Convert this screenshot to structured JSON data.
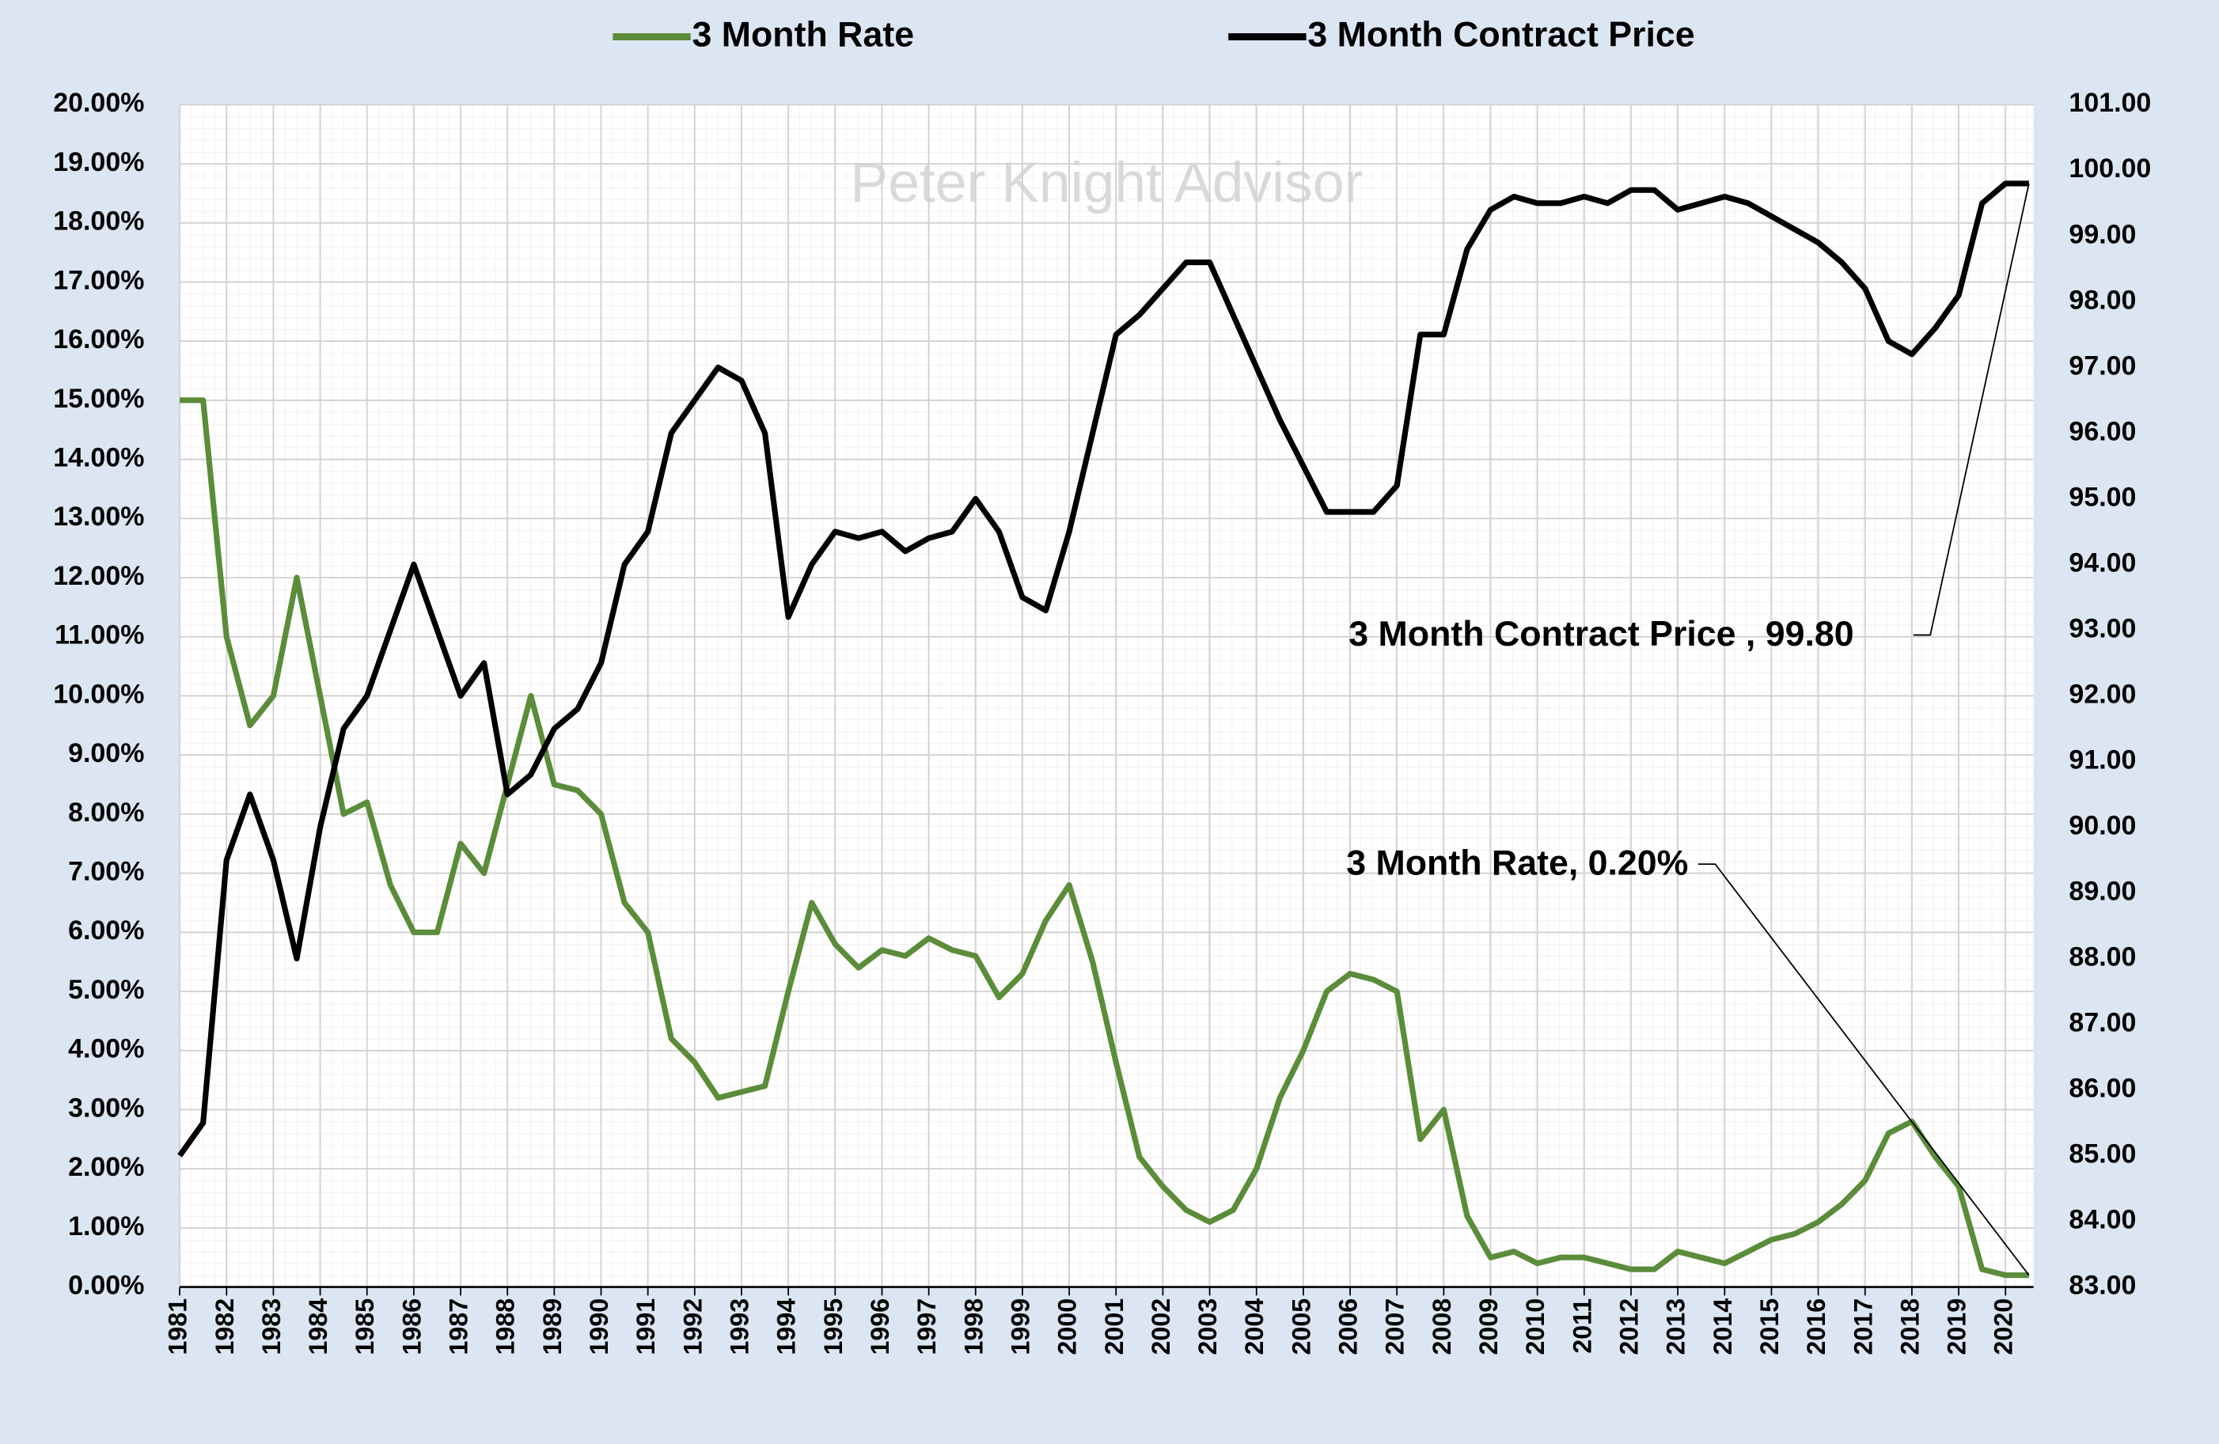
{
  "chart_data": {
    "type": "line",
    "watermark": "Peter Knight Advisor",
    "legend": "top",
    "grid": true,
    "x": [
      1981.0,
      1981.5,
      1982.0,
      1982.5,
      1983.0,
      1983.5,
      1984.0,
      1984.5,
      1985.0,
      1985.5,
      1986.0,
      1986.5,
      1987.0,
      1987.5,
      1988.0,
      1988.5,
      1989.0,
      1989.5,
      1990.0,
      1990.5,
      1991.0,
      1991.5,
      1992.0,
      1992.5,
      1993.0,
      1993.5,
      1994.0,
      1994.5,
      1995.0,
      1995.5,
      1996.0,
      1996.5,
      1997.0,
      1997.5,
      1998.0,
      1998.5,
      1999.0,
      1999.5,
      2000.0,
      2000.5,
      2001.0,
      2001.5,
      2002.0,
      2002.5,
      2003.0,
      2003.5,
      2004.0,
      2004.5,
      2005.0,
      2005.5,
      2006.0,
      2006.5,
      2007.0,
      2007.5,
      2008.0,
      2008.5,
      2009.0,
      2009.5,
      2010.0,
      2010.5,
      2011.0,
      2011.5,
      2012.0,
      2012.5,
      2013.0,
      2013.5,
      2014.0,
      2014.5,
      2015.0,
      2015.5,
      2016.0,
      2016.5,
      2017.0,
      2017.5,
      2018.0,
      2018.5,
      2019.0,
      2019.5,
      2020.0,
      2020.5
    ],
    "xlim": [
      1981,
      2020.6
    ],
    "xticks": [
      1981,
      1982,
      1983,
      1984,
      1985,
      1986,
      1987,
      1988,
      1989,
      1990,
      1991,
      1992,
      1993,
      1994,
      1995,
      1996,
      1997,
      1998,
      1999,
      2000,
      2001,
      2002,
      2003,
      2004,
      2005,
      2006,
      2007,
      2008,
      2009,
      2010,
      2011,
      2012,
      2013,
      2014,
      2015,
      2016,
      2017,
      2018,
      2019,
      2020
    ],
    "ylim": [
      0,
      20
    ],
    "yticks": [
      {
        "value": 0,
        "label": "0.00%"
      },
      {
        "value": 1,
        "label": "1.00%"
      },
      {
        "value": 2,
        "label": "2.00%"
      },
      {
        "value": 3,
        "label": "3.00%"
      },
      {
        "value": 4,
        "label": "4.00%"
      },
      {
        "value": 5,
        "label": "5.00%"
      },
      {
        "value": 6,
        "label": "6.00%"
      },
      {
        "value": 7,
        "label": "7.00%"
      },
      {
        "value": 8,
        "label": "8.00%"
      },
      {
        "value": 9,
        "label": "9.00%"
      },
      {
        "value": 10,
        "label": "10.00%"
      },
      {
        "value": 11,
        "label": "11.00%"
      },
      {
        "value": 12,
        "label": "12.00%"
      },
      {
        "value": 13,
        "label": "13.00%"
      },
      {
        "value": 14,
        "label": "14.00%"
      },
      {
        "value": 15,
        "label": "15.00%"
      },
      {
        "value": 16,
        "label": "16.00%"
      },
      {
        "value": 17,
        "label": "17.00%"
      },
      {
        "value": 18,
        "label": "18.00%"
      },
      {
        "value": 19,
        "label": "19.00%"
      },
      {
        "value": 20,
        "label": "20.00%"
      }
    ],
    "y2lim": [
      83,
      101
    ],
    "y2ticks": [
      {
        "value": 83,
        "label": "83.00"
      },
      {
        "value": 84,
        "label": "84.00"
      },
      {
        "value": 85,
        "label": "85.00"
      },
      {
        "value": 86,
        "label": "86.00"
      },
      {
        "value": 87,
        "label": "87.00"
      },
      {
        "value": 88,
        "label": "88.00"
      },
      {
        "value": 89,
        "label": "89.00"
      },
      {
        "value": 90,
        "label": "90.00"
      },
      {
        "value": 91,
        "label": "91.00"
      },
      {
        "value": 92,
        "label": "92.00"
      },
      {
        "value": 93,
        "label": "93.00"
      },
      {
        "value": 94,
        "label": "94.00"
      },
      {
        "value": 95,
        "label": "95.00"
      },
      {
        "value": 96,
        "label": "96.00"
      },
      {
        "value": 97,
        "label": "97.00"
      },
      {
        "value": 98,
        "label": "98.00"
      },
      {
        "value": 99,
        "label": "99.00"
      },
      {
        "value": 100,
        "label": "100.00"
      },
      {
        "value": 101,
        "label": "101.00"
      }
    ],
    "series": [
      {
        "name": "3 Month Rate",
        "color": "#5b8c3a",
        "values": [
          15,
          15,
          11,
          9.5,
          10,
          12,
          10,
          8,
          8.2,
          6.8,
          6,
          6,
          7.5,
          7,
          8.5,
          10,
          8.5,
          8.4,
          8,
          6.5,
          6,
          4.2,
          3.8,
          3.2,
          3.3,
          3.4,
          5,
          6.5,
          5.8,
          5.4,
          5.7,
          5.6,
          5.9,
          5.7,
          5.6,
          4.9,
          5.3,
          6.2,
          6.8,
          5.5,
          3.8,
          2.2,
          1.7,
          1.3,
          1.1,
          1.3,
          2,
          3.2,
          4,
          5,
          5.3,
          5.2,
          5,
          2.5,
          3,
          1.2,
          0.5,
          0.6,
          0.4,
          0.5,
          0.5,
          0.4,
          0.3,
          0.3,
          0.6,
          0.5,
          0.4,
          0.6,
          0.8,
          0.9,
          1.1,
          1.4,
          1.8,
          2.6,
          2.8,
          2.2,
          1.7,
          0.3,
          0.2,
          0.2
        ]
      },
      {
        "name": "3 Month Contract Price",
        "color": "#000000",
        "axis": "y2",
        "values": [
          85,
          85.5,
          89.5,
          90.5,
          89.5,
          88,
          90,
          91.5,
          92,
          93,
          94,
          93,
          92,
          92.5,
          90.5,
          90.8,
          91.5,
          91.8,
          92.5,
          94,
          94.5,
          96,
          96.5,
          97,
          96.8,
          96,
          93.2,
          94,
          94.5,
          94.4,
          94.5,
          94.2,
          94.4,
          94.5,
          95,
          94.5,
          93.5,
          93.3,
          94.5,
          96,
          97.5,
          97.8,
          98.2,
          98.6,
          98.6,
          97.8,
          97,
          96.2,
          95.5,
          94.8,
          94.8,
          94.8,
          95.2,
          97.5,
          97.5,
          98.8,
          99.4,
          99.6,
          99.5,
          99.5,
          99.6,
          99.5,
          99.7,
          99.7,
          99.4,
          99.5,
          99.6,
          99.5,
          99.3,
          99.1,
          98.9,
          98.6,
          98.2,
          97.4,
          97.2,
          97.6,
          98.1,
          99.5,
          99.8,
          99.8
        ]
      }
    ],
    "annotations": [
      {
        "text": "3 Month Contract Price , 99.80",
        "series": 1
      },
      {
        "text": "3 Month Rate, 0.20%",
        "series": 0
      }
    ]
  }
}
